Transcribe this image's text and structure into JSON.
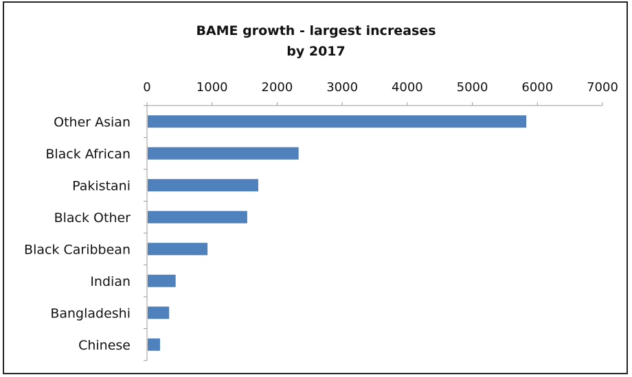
{
  "chart_data": {
    "type": "bar",
    "orientation": "horizontal",
    "title": [
      "BAME growth - largest increases",
      "by 2017"
    ],
    "categories": [
      "Other Asian",
      "Black African",
      "Pakistani",
      "Black Other",
      "Black Caribbean",
      "Indian",
      "Bangladeshi",
      "Chinese"
    ],
    "values": [
      5830,
      2330,
      1710,
      1540,
      930,
      440,
      340,
      200
    ],
    "xlim": [
      0,
      7000
    ],
    "xticks": [
      0,
      1000,
      2000,
      3000,
      4000,
      5000,
      6000,
      7000
    ],
    "x_axis_position": "top",
    "grid": false,
    "legend": "none",
    "bar_color": "#4F81BD"
  }
}
